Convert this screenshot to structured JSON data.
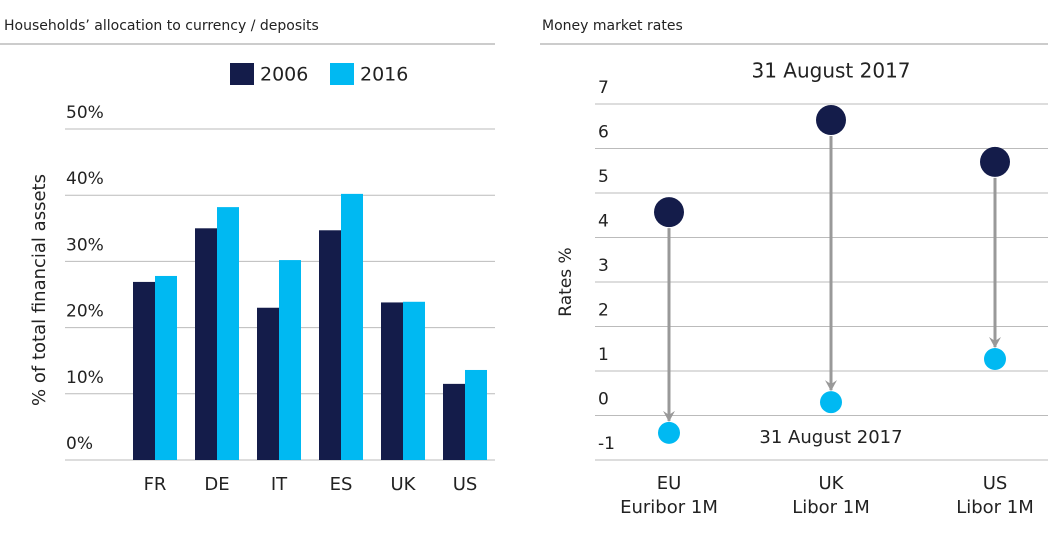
{
  "chart_data": [
    {
      "type": "bar",
      "title": "Households’ allocation to currency / deposits",
      "ylabel": "% of total financial assets",
      "categories": [
        "FR",
        "DE",
        "IT",
        "ES",
        "UK",
        "US"
      ],
      "series": [
        {
          "name": "2006",
          "color": "#141c4a",
          "values": [
            26.9,
            35.0,
            23.0,
            34.7,
            23.8,
            11.5
          ]
        },
        {
          "name": "2016",
          "color": "#00b9f2",
          "values": [
            27.8,
            38.2,
            30.2,
            40.2,
            23.9,
            13.6
          ]
        }
      ],
      "ylim": [
        0,
        50
      ],
      "yticks": [
        {
          "value": 0,
          "label": "0%"
        },
        {
          "value": 10,
          "label": "10%"
        },
        {
          "value": 20,
          "label": "20%"
        },
        {
          "value": 30,
          "label": "30%"
        },
        {
          "value": 40,
          "label": "40%"
        },
        {
          "value": 50,
          "label": "50%"
        }
      ],
      "grid": true
    },
    {
      "type": "arrow",
      "title": "Money market rates",
      "ylabel": "Rates %",
      "categories": [
        [
          "EU",
          "Euribor 1M"
        ],
        [
          "UK",
          "Libor 1M"
        ],
        [
          "US",
          "Libor 1M"
        ]
      ],
      "series": [
        {
          "color": "#141c4a",
          "values": [
            4.57,
            6.64,
            5.7
          ]
        },
        {
          "color": "#00b9f2",
          "values": [
            -0.39,
            0.3,
            1.27
          ]
        }
      ],
      "annotations": [
        "31 August 2017",
        "31 August 2017"
      ],
      "ylim": [
        -1,
        7
      ],
      "yticks": [
        -1,
        0,
        1,
        2,
        3,
        4,
        5,
        6,
        7
      ],
      "grid": true
    }
  ]
}
